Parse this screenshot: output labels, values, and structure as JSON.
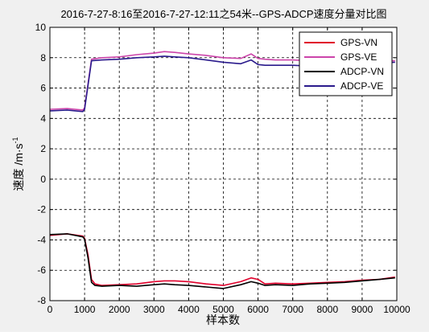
{
  "chart_data": {
    "type": "line",
    "title": "2016-7-27-8:16至2016-7-27-12:11之54米--GPS-ADCP速度分量对比图",
    "xlabel": "样本数",
    "ylabel": "速度 /m·s",
    "ylabel_superscript": "-1",
    "xlim": [
      0,
      10000
    ],
    "ylim": [
      -8,
      10
    ],
    "xticks": [
      0,
      1000,
      2000,
      3000,
      4000,
      5000,
      6000,
      7000,
      8000,
      9000,
      10000
    ],
    "yticks": [
      -8,
      -6,
      -4,
      -2,
      0,
      2,
      4,
      6,
      8,
      10
    ],
    "grid": true,
    "legend_position": "top-right",
    "series": [
      {
        "name": "GPS-VN",
        "color": "#e0002b",
        "x": [
          0,
          500,
          950,
          1000,
          1100,
          1200,
          1300,
          1500,
          2000,
          2500,
          3000,
          3300,
          3600,
          4000,
          4500,
          5000,
          5500,
          5800,
          6000,
          6200,
          6500,
          7000,
          7500,
          8000,
          8500,
          9000,
          9500,
          9950
        ],
        "y": [
          -3.7,
          -3.6,
          -3.75,
          -3.9,
          -5.0,
          -6.6,
          -6.9,
          -7.0,
          -6.95,
          -6.9,
          -6.75,
          -6.7,
          -6.7,
          -6.75,
          -6.9,
          -7.0,
          -6.75,
          -6.5,
          -6.6,
          -6.9,
          -6.85,
          -6.9,
          -6.85,
          -6.8,
          -6.75,
          -6.65,
          -6.6,
          -6.45
        ]
      },
      {
        "name": "GPS-VE",
        "color": "#cc44aa",
        "x": [
          0,
          500,
          950,
          1000,
          1100,
          1200,
          1500,
          2000,
          2500,
          3000,
          3300,
          3600,
          4000,
          4500,
          5000,
          5500,
          5800,
          6000,
          6200,
          6500,
          7000,
          7500,
          8000,
          8500,
          9000,
          9500,
          9950
        ],
        "y": [
          4.6,
          4.65,
          4.55,
          4.7,
          6.3,
          7.9,
          8.0,
          8.05,
          8.2,
          8.3,
          8.4,
          8.35,
          8.25,
          8.15,
          8.0,
          7.95,
          8.25,
          7.95,
          7.9,
          7.85,
          7.85,
          7.8,
          7.75,
          7.75,
          7.75,
          7.8,
          7.8
        ]
      },
      {
        "name": "ADCP-VN",
        "color": "#000000",
        "x": [
          0,
          500,
          950,
          1000,
          1100,
          1200,
          1300,
          1500,
          2000,
          2500,
          3000,
          3300,
          3600,
          4000,
          4500,
          5000,
          5500,
          5800,
          6000,
          6200,
          6500,
          7000,
          7500,
          8000,
          8500,
          9000,
          9500,
          9950
        ],
        "y": [
          -3.65,
          -3.6,
          -3.8,
          -3.95,
          -5.2,
          -6.8,
          -7.0,
          -7.05,
          -7.0,
          -7.05,
          -6.95,
          -6.9,
          -6.95,
          -7.0,
          -7.1,
          -7.2,
          -6.95,
          -6.75,
          -6.85,
          -7.0,
          -6.95,
          -7.0,
          -6.9,
          -6.85,
          -6.8,
          -6.7,
          -6.6,
          -6.5
        ]
      },
      {
        "name": "ADCP-VE",
        "color": "#2a1a8c",
        "x": [
          0,
          500,
          950,
          1000,
          1100,
          1200,
          1500,
          2000,
          2500,
          3000,
          3300,
          3600,
          4000,
          4500,
          5000,
          5500,
          5800,
          6000,
          6200,
          6500,
          7000,
          7500,
          8000,
          8500,
          9000,
          9500,
          9950
        ],
        "y": [
          4.5,
          4.55,
          4.45,
          4.6,
          6.2,
          7.8,
          7.85,
          7.9,
          8.0,
          8.05,
          8.1,
          8.05,
          8.0,
          7.85,
          7.7,
          7.6,
          7.85,
          7.55,
          7.5,
          7.5,
          7.5,
          7.45,
          7.4,
          7.5,
          7.6,
          7.65,
          7.7
        ]
      }
    ]
  }
}
